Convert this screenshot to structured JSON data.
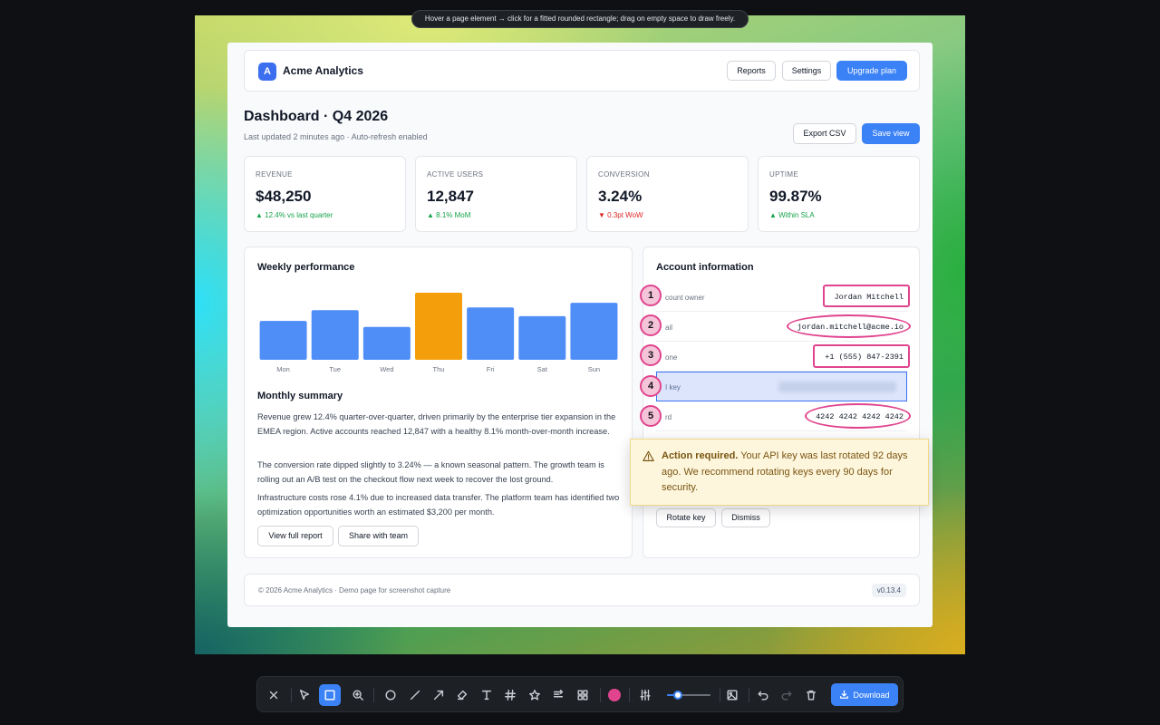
{
  "hint": "Hover a page element → click for a fitted rounded rectangle; drag on empty space to draw freely.",
  "app": {
    "logo_letter": "A",
    "name": "Acme Analytics"
  },
  "nav": {
    "reports": "Reports",
    "settings": "Settings",
    "upgrade": "Upgrade plan"
  },
  "dashboard": {
    "title": "Dashboard · Q4 2026",
    "subtitle": "Last updated 2 minutes ago · Auto-refresh enabled",
    "export": "Export CSV",
    "save": "Save view"
  },
  "stats": [
    {
      "label": "REVENUE",
      "value": "$48,250",
      "change": "▲ 12.4% vs last quarter",
      "trend": "up"
    },
    {
      "label": "ACTIVE USERS",
      "value": "12,847",
      "change": "▲ 8.1% MoM",
      "trend": "up"
    },
    {
      "label": "CONVERSION",
      "value": "3.24%",
      "change": "▼ 0.3pt WoW",
      "trend": "down"
    },
    {
      "label": "UPTIME",
      "value": "99.87%",
      "change": "▲ Within SLA",
      "trend": "up"
    }
  ],
  "weekly": {
    "title": "Weekly performance",
    "highlight_color": "#f59e0b",
    "bar_color": "#4f8ef7"
  },
  "chart_data": {
    "type": "bar",
    "title": "Weekly performance",
    "categories": [
      "Mon",
      "Tue",
      "Wed",
      "Thu",
      "Fri",
      "Sat",
      "Sun"
    ],
    "values": [
      58,
      74,
      49,
      100,
      78,
      65,
      85
    ],
    "highlighted": "Thu",
    "ylim": [
      0,
      100
    ],
    "grid": false,
    "xlabel": "",
    "ylabel": ""
  },
  "summary": {
    "title": "Monthly summary",
    "paragraphs": [
      "Revenue grew 12.4% quarter-over-quarter, driven primarily by the enterprise tier expansion in the EMEA region. Active accounts reached 12,847 with a healthy 8.1% month-over-month increase.",
      "The conversion rate dipped slightly to 3.24% — a known seasonal pattern. The growth team is rolling out an A/B test on the checkout flow next week to recover the lost ground.",
      "Infrastructure costs rose 4.1% due to increased data transfer. The platform team has identified two optimization opportunities worth an estimated $3,200 per month."
    ],
    "view_report": "View full report",
    "share": "Share with team"
  },
  "account": {
    "title": "Account information",
    "rows": [
      {
        "label": "count owner",
        "value": "Jordan Mitchell"
      },
      {
        "label": "ail",
        "value": "jordan.mitchell@acme.io"
      },
      {
        "label": "one",
        "value": "+1 (555) 847-2391"
      },
      {
        "label": "I key",
        "value": ""
      },
      {
        "label": "rd",
        "value": "4242 4242 4242 4242"
      }
    ],
    "rotate": "Rotate key",
    "dismiss": "Dismiss"
  },
  "alert": {
    "strong": "Action required.",
    "text": " Your API key was last rotated 92 days ago. We recommend rotating keys every 90 days for security."
  },
  "markers": [
    "1",
    "2",
    "3",
    "4",
    "5"
  ],
  "footer": {
    "text": "© 2026 Acme Analytics · Demo page for screenshot capture",
    "version": "v0.13.4"
  },
  "toolbar": {
    "active_tool": "rectangle",
    "color": "#e0448e",
    "stroke_level": 0.25,
    "download": "Download",
    "tools": [
      "close-icon",
      "select-icon",
      "rectangle-icon",
      "zoom-icon",
      "circle-icon",
      "line-icon",
      "arrow-icon",
      "highlighter-icon",
      "text-icon",
      "hash-icon",
      "star-icon",
      "redact-icon",
      "grid-icon",
      "sliders-icon",
      "image-icon",
      "undo-icon",
      "redo-icon",
      "trash-icon"
    ]
  }
}
